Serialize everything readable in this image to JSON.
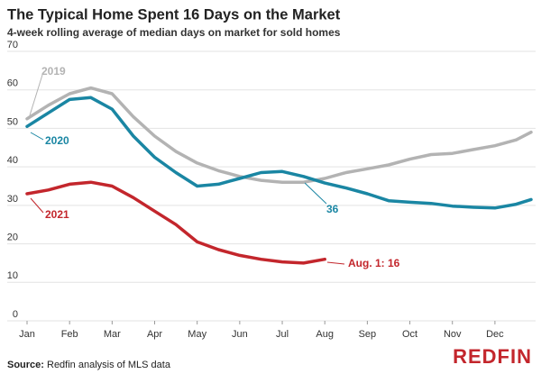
{
  "chart_data": {
    "type": "line",
    "title": "The Typical Home Spent 16 Days on the Market",
    "subtitle": "4-week rolling average of median days on market for sold homes",
    "x": [
      0,
      0.5,
      1,
      1.5,
      2,
      2.5,
      3,
      3.5,
      4,
      4.5,
      5,
      5.5,
      6,
      6.5,
      7,
      7.5,
      8,
      8.5,
      9,
      9.5,
      10,
      10.5,
      11,
      11.5,
      11.85
    ],
    "xlim": [
      0,
      11.85
    ],
    "xticks": [
      {
        "value": 0,
        "label": "Jan"
      },
      {
        "value": 1,
        "label": "Feb"
      },
      {
        "value": 2,
        "label": "Mar"
      },
      {
        "value": 3,
        "label": "Apr"
      },
      {
        "value": 4,
        "label": "May"
      },
      {
        "value": 5,
        "label": "Jun"
      },
      {
        "value": 6,
        "label": "Jul"
      },
      {
        "value": 7,
        "label": "Aug"
      },
      {
        "value": 8,
        "label": "Sep"
      },
      {
        "value": 9,
        "label": "Oct"
      },
      {
        "value": 10,
        "label": "Nov"
      },
      {
        "value": 11,
        "label": "Dec"
      }
    ],
    "ylim": [
      0,
      70
    ],
    "yticks": [
      0,
      10,
      20,
      30,
      40,
      50,
      60,
      70
    ],
    "grid": true,
    "series": [
      {
        "name": "2019",
        "color": "#b3b3b3",
        "values": [
          52.5,
          56,
          59,
          60.5,
          59,
          53,
          48,
          44,
          41,
          39,
          37.5,
          36.5,
          36,
          36,
          37,
          38.5,
          39.5,
          40.5,
          42,
          43.2,
          43.5,
          44.5,
          45.5,
          47,
          49
        ]
      },
      {
        "name": "2020",
        "color": "#1a86a3",
        "values": [
          50.5,
          54,
          57.5,
          58,
          55,
          48,
          42.5,
          38.5,
          35,
          35.5,
          37,
          38.5,
          38.8,
          37.5,
          35.8,
          34.5,
          33,
          31.2,
          30.8,
          30.5,
          29.8,
          29.5,
          29.3,
          30.3,
          31.5
        ]
      },
      {
        "name": "2021",
        "color": "#c3262c",
        "values": [
          33,
          34,
          35.5,
          36,
          35,
          32,
          28.5,
          25,
          20.5,
          18.5,
          17,
          16,
          15.3,
          15,
          16,
          null,
          null,
          null,
          null,
          null,
          null,
          null,
          null,
          null,
          null
        ]
      }
    ],
    "annotations": [
      "36",
      "Aug. 1: 16"
    ],
    "source_label": "Source:",
    "source": "Redfin analysis of MLS data",
    "logo": "REDFIN"
  }
}
